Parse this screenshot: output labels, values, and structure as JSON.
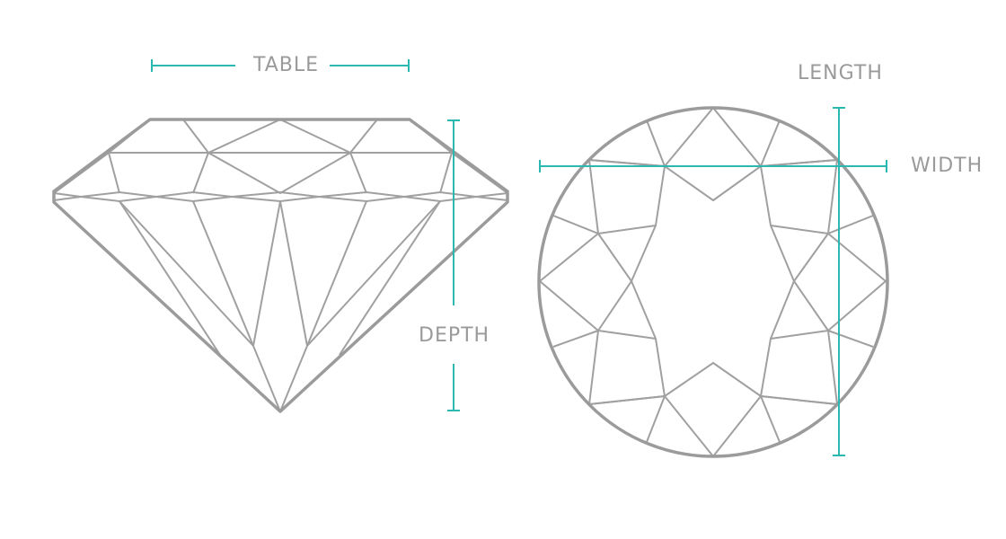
{
  "colors": {
    "outline": "#9b9b9b",
    "facet": "#a0a0a0",
    "measure": "#2bb8b0",
    "label": "#9a9a9a"
  },
  "labels": {
    "table": "TABLE",
    "length": "LENGTH",
    "width": "WIDTH",
    "depth": "DEPTH"
  }
}
